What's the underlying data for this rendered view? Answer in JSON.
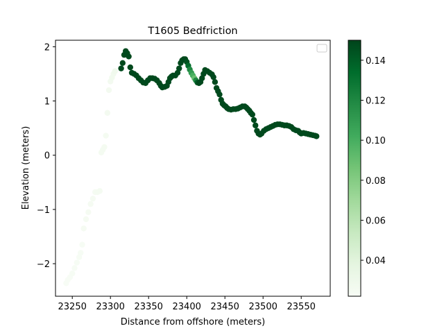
{
  "chart_data": {
    "type": "scatter",
    "title": "T1605 Bedfriction",
    "xlabel": "Distance from offshore (meters)",
    "ylabel": "Elevation (meters)",
    "xlim": [
      23228,
      23588
    ],
    "ylim": [
      -2.6,
      2.12
    ],
    "xticks": [
      23250,
      23300,
      23350,
      23400,
      23450,
      23500,
      23550
    ],
    "yticks": [
      -2,
      -1,
      0,
      1,
      2
    ],
    "xtick_labels": [
      "23250",
      "23300",
      "23350",
      "23400",
      "23450",
      "23500",
      "23550"
    ],
    "ytick_labels": [
      "−2",
      "−1",
      "0",
      "1",
      "2"
    ],
    "grid": false,
    "legend": {
      "placement": "top-right",
      "entries": []
    },
    "colorbar": {
      "range": [
        0.022,
        0.15
      ],
      "ticks": [
        0.04,
        0.06,
        0.08,
        0.1,
        0.12,
        0.14
      ],
      "tick_labels": [
        "0.04",
        "0.06",
        "0.08",
        "0.10",
        "0.12",
        "0.14"
      ],
      "colormap": "Greens",
      "colormap_stops": [
        "#f7fcf5",
        "#e5f5e0",
        "#c7e9c0",
        "#a1d99b",
        "#74c476",
        "#41ab5d",
        "#238b45",
        "#006d2c",
        "#00441b"
      ]
    },
    "series": [
      {
        "points": [
          [
            23242,
            -2.36,
            0.022
          ],
          [
            23244,
            -2.3,
            0.022
          ],
          [
            23247,
            -2.25,
            0.022
          ],
          [
            23250,
            -2.18,
            0.023
          ],
          [
            23253,
            -2.08,
            0.023
          ],
          [
            23256,
            -1.98,
            0.023
          ],
          [
            23259,
            -1.88,
            0.023
          ],
          [
            23261,
            -1.8,
            0.023
          ],
          [
            23263,
            -1.65,
            0.023
          ],
          [
            23265,
            -1.35,
            0.024
          ],
          [
            23268,
            -1.18,
            0.024
          ],
          [
            23271,
            -1.05,
            0.024
          ],
          [
            23274,
            -0.9,
            0.024
          ],
          [
            23277,
            -0.8,
            0.024
          ],
          [
            23280,
            -0.68,
            0.024
          ],
          [
            23283,
            -0.68,
            0.025
          ],
          [
            23286,
            -0.66,
            0.025
          ],
          [
            23288,
            0.05,
            0.025
          ],
          [
            23290,
            0.1,
            0.025
          ],
          [
            23292,
            0.15,
            0.025
          ],
          [
            23294,
            0.36,
            0.025
          ],
          [
            23296,
            0.78,
            0.026
          ],
          [
            23298,
            1.2,
            0.026
          ],
          [
            23300,
            1.36,
            0.026
          ],
          [
            23302,
            1.43,
            0.027
          ],
          [
            23304,
            1.5,
            0.027
          ],
          [
            23306,
            1.55,
            0.028
          ],
          [
            23314,
            1.6,
            0.148
          ],
          [
            23316,
            1.7,
            0.148
          ],
          [
            23318,
            1.85,
            0.148
          ],
          [
            23320,
            1.92,
            0.148
          ],
          [
            23322,
            1.88,
            0.148
          ],
          [
            23324,
            1.82,
            0.148
          ],
          [
            23326,
            1.62,
            0.148
          ],
          [
            23328,
            1.52,
            0.148
          ],
          [
            23331,
            1.5,
            0.148
          ],
          [
            23334,
            1.47,
            0.148
          ],
          [
            23337,
            1.42,
            0.148
          ],
          [
            23340,
            1.38,
            0.148
          ],
          [
            23343,
            1.34,
            0.148
          ],
          [
            23346,
            1.33,
            0.148
          ],
          [
            23349,
            1.38,
            0.148
          ],
          [
            23352,
            1.42,
            0.148
          ],
          [
            23355,
            1.42,
            0.148
          ],
          [
            23358,
            1.41,
            0.148
          ],
          [
            23361,
            1.38,
            0.148
          ],
          [
            23364,
            1.33,
            0.148
          ],
          [
            23366,
            1.28,
            0.148
          ],
          [
            23368,
            1.25,
            0.148
          ],
          [
            23371,
            1.26,
            0.148
          ],
          [
            23374,
            1.28,
            0.148
          ],
          [
            23376,
            1.35,
            0.148
          ],
          [
            23378,
            1.42,
            0.148
          ],
          [
            23380,
            1.45,
            0.148
          ],
          [
            23382,
            1.47,
            0.148
          ],
          [
            23385,
            1.47,
            0.148
          ],
          [
            23388,
            1.52,
            0.148
          ],
          [
            23390,
            1.6,
            0.148
          ],
          [
            23392,
            1.7,
            0.148
          ],
          [
            23394,
            1.75,
            0.148
          ],
          [
            23396,
            1.77,
            0.148
          ],
          [
            23398,
            1.77,
            0.148
          ],
          [
            23400,
            1.72,
            0.145
          ],
          [
            23402,
            1.65,
            0.135
          ],
          [
            23404,
            1.58,
            0.12
          ],
          [
            23406,
            1.52,
            0.11
          ],
          [
            23408,
            1.47,
            0.1
          ],
          [
            23410,
            1.42,
            0.09
          ],
          [
            23412,
            1.38,
            0.12
          ],
          [
            23414,
            1.34,
            0.14
          ],
          [
            23416,
            1.33,
            0.148
          ],
          [
            23418,
            1.35,
            0.148
          ],
          [
            23420,
            1.42,
            0.148
          ],
          [
            23422,
            1.5,
            0.148
          ],
          [
            23424,
            1.57,
            0.148
          ],
          [
            23427,
            1.55,
            0.148
          ],
          [
            23430,
            1.52,
            0.148
          ],
          [
            23433,
            1.49,
            0.148
          ],
          [
            23435,
            1.44,
            0.148
          ],
          [
            23437,
            1.35,
            0.148
          ],
          [
            23439,
            1.24,
            0.148
          ],
          [
            23441,
            1.18,
            0.148
          ],
          [
            23443,
            1.12,
            0.148
          ],
          [
            23445,
            1.02,
            0.148
          ],
          [
            23447,
            0.95,
            0.148
          ],
          [
            23449,
            0.92,
            0.148
          ],
          [
            23451,
            0.9,
            0.148
          ],
          [
            23453,
            0.87,
            0.148
          ],
          [
            23455,
            0.85,
            0.148
          ],
          [
            23458,
            0.84,
            0.148
          ],
          [
            23461,
            0.85,
            0.148
          ],
          [
            23464,
            0.85,
            0.148
          ],
          [
            23467,
            0.86,
            0.148
          ],
          [
            23470,
            0.88,
            0.148
          ],
          [
            23473,
            0.9,
            0.148
          ],
          [
            23476,
            0.9,
            0.148
          ],
          [
            23478,
            0.88,
            0.148
          ],
          [
            23480,
            0.85,
            0.148
          ],
          [
            23482,
            0.82,
            0.148
          ],
          [
            23484,
            0.78,
            0.148
          ],
          [
            23486,
            0.75,
            0.148
          ],
          [
            23488,
            0.65,
            0.148
          ],
          [
            23490,
            0.55,
            0.148
          ],
          [
            23492,
            0.45,
            0.148
          ],
          [
            23494,
            0.4,
            0.148
          ],
          [
            23496,
            0.38,
            0.148
          ],
          [
            23498,
            0.4,
            0.148
          ],
          [
            23501,
            0.45,
            0.148
          ],
          [
            23504,
            0.48,
            0.148
          ],
          [
            23507,
            0.5,
            0.148
          ],
          [
            23510,
            0.52,
            0.148
          ],
          [
            23513,
            0.54,
            0.148
          ],
          [
            23516,
            0.56,
            0.148
          ],
          [
            23519,
            0.57,
            0.148
          ],
          [
            23522,
            0.57,
            0.148
          ],
          [
            23525,
            0.56,
            0.148
          ],
          [
            23528,
            0.55,
            0.148
          ],
          [
            23531,
            0.55,
            0.148
          ],
          [
            23534,
            0.54,
            0.148
          ],
          [
            23537,
            0.52,
            0.148
          ],
          [
            23540,
            0.48,
            0.148
          ],
          [
            23543,
            0.46,
            0.148
          ],
          [
            23546,
            0.45,
            0.148
          ],
          [
            23548,
            0.42,
            0.148
          ],
          [
            23550,
            0.4,
            0.148
          ],
          [
            23553,
            0.41,
            0.148
          ],
          [
            23556,
            0.4,
            0.148
          ],
          [
            23559,
            0.39,
            0.148
          ],
          [
            23562,
            0.38,
            0.148
          ],
          [
            23565,
            0.37,
            0.148
          ],
          [
            23568,
            0.36,
            0.148
          ],
          [
            23570,
            0.35,
            0.148
          ]
        ]
      }
    ]
  }
}
